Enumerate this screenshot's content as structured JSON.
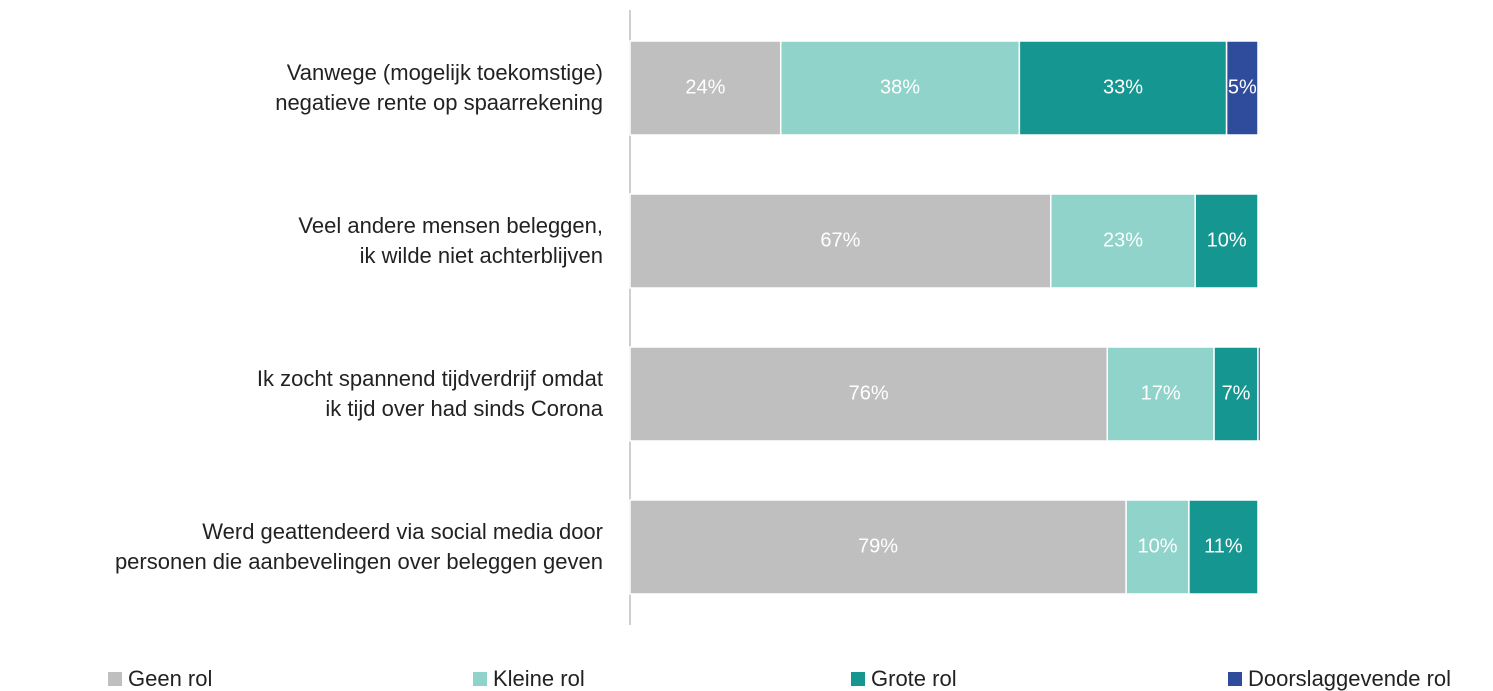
{
  "chart_data": {
    "type": "stacked-bar-horizontal",
    "categories": [
      "Vanwege (mogelijk toekomstige)\nnegatieve rente op spaarrekening",
      "Veel andere mensen beleggen,\nik wilde niet achterblijven",
      "Ik zocht spannend tijdverdrijf omdat\nik tijd over had sinds Corona",
      "Werd geattendeerd via social media door\npersonen die aanbevelingen over beleggen geven"
    ],
    "series": [
      {
        "name": "Geen rol",
        "color": "#bfbfbf",
        "values": [
          24,
          67,
          76,
          79
        ],
        "value_labels": [
          "24%",
          "67%",
          "76%",
          "79%"
        ]
      },
      {
        "name": "Kleine rol",
        "color": "#8fd3ca",
        "values": [
          38,
          23,
          17,
          10
        ],
        "value_labels": [
          "38%",
          "23%",
          "17%",
          "10%"
        ]
      },
      {
        "name": "Grote rol",
        "color": "#169691",
        "values": [
          33,
          10,
          7,
          11
        ],
        "value_labels": [
          "33%",
          "10%",
          "7%",
          "11%"
        ]
      },
      {
        "name": "Doorslaggevende rol",
        "color": "#2f4b9c",
        "values": [
          5,
          0,
          0.4,
          0
        ],
        "value_labels": [
          "5%",
          null,
          null,
          null
        ]
      }
    ],
    "xlim": [
      0,
      100
    ],
    "legend": "bottom"
  }
}
